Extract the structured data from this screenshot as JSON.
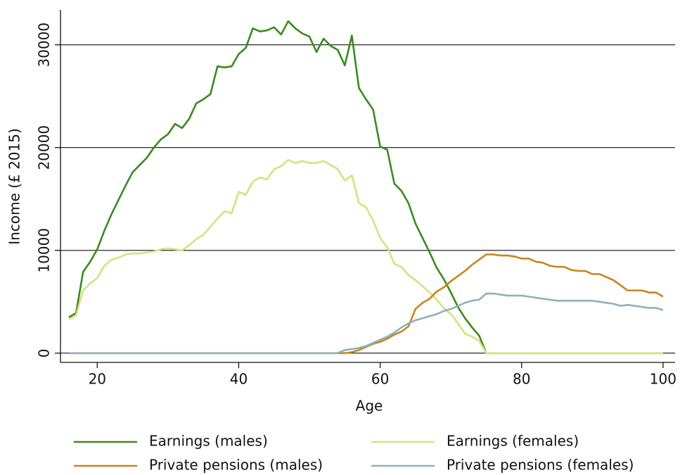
{
  "chart_data": {
    "type": "line",
    "x_label": "Age",
    "y_label": "Income (£ 2015)",
    "x": [
      16,
      17,
      18,
      19,
      20,
      21,
      22,
      23,
      24,
      25,
      26,
      27,
      28,
      29,
      30,
      31,
      32,
      33,
      34,
      35,
      36,
      37,
      38,
      39,
      40,
      41,
      42,
      43,
      44,
      45,
      46,
      47,
      48,
      49,
      50,
      51,
      52,
      53,
      54,
      55,
      56,
      57,
      58,
      59,
      60,
      61,
      62,
      63,
      64,
      65,
      66,
      67,
      68,
      69,
      70,
      71,
      72,
      73,
      74,
      75,
      76,
      77,
      78,
      79,
      80,
      81,
      82,
      83,
      84,
      85,
      86,
      87,
      88,
      89,
      90,
      91,
      92,
      93,
      94,
      95,
      96,
      97,
      98,
      99,
      100
    ],
    "series": [
      {
        "name": "Earnings (males)",
        "color": "#3b8a1f",
        "values": [
          3500,
          3900,
          7900,
          8900,
          10100,
          11900,
          13500,
          14900,
          16300,
          17600,
          18300,
          19000,
          20000,
          20800,
          21300,
          22300,
          21900,
          22800,
          24300,
          24700,
          25200,
          27900,
          27800,
          27900,
          29100,
          29700,
          31600,
          31300,
          31400,
          31700,
          31000,
          32300,
          31600,
          31100,
          30800,
          29300,
          30600,
          29900,
          29500,
          28000,
          30900,
          25800,
          24700,
          23700,
          20100,
          19800,
          16500,
          15800,
          14600,
          12600,
          11200,
          9800,
          8300,
          7200,
          5900,
          4500,
          3400,
          2500,
          1700,
          0,
          0,
          0,
          0,
          0,
          0,
          0,
          0,
          0,
          0,
          0,
          0,
          0,
          0,
          0,
          0,
          0,
          0,
          0,
          0,
          0,
          0,
          0,
          0,
          0,
          0
        ]
      },
      {
        "name": "Earnings (females)",
        "color": "#d6e27c",
        "values": [
          3300,
          3700,
          6100,
          6800,
          7300,
          8500,
          9100,
          9300,
          9600,
          9700,
          9700,
          9800,
          9900,
          10100,
          10200,
          10100,
          10000,
          10500,
          11100,
          11500,
          12300,
          13100,
          13800,
          13600,
          15700,
          15400,
          16700,
          17100,
          16900,
          17900,
          18200,
          18800,
          18500,
          18700,
          18500,
          18500,
          18700,
          18300,
          17900,
          16800,
          17300,
          14600,
          14200,
          12900,
          11200,
          10300,
          8700,
          8400,
          7600,
          7100,
          6500,
          5900,
          5200,
          4400,
          3800,
          2900,
          1900,
          1600,
          1200,
          0,
          0,
          0,
          0,
          0,
          0,
          0,
          0,
          0,
          0,
          0,
          0,
          0,
          0,
          0,
          0,
          0,
          0,
          0,
          0,
          0,
          0,
          0,
          0,
          0,
          0
        ]
      },
      {
        "name": "Private pensions (males)",
        "color": "#c8861c",
        "values": [
          0,
          0,
          0,
          0,
          0,
          0,
          0,
          0,
          0,
          0,
          0,
          0,
          0,
          0,
          0,
          0,
          0,
          0,
          0,
          0,
          0,
          0,
          0,
          0,
          0,
          0,
          0,
          0,
          0,
          0,
          0,
          0,
          0,
          0,
          0,
          0,
          0,
          0,
          0,
          0,
          100,
          300,
          600,
          900,
          1100,
          1400,
          1800,
          2100,
          2600,
          4300,
          4900,
          5300,
          6000,
          6400,
          7000,
          7500,
          8000,
          8600,
          9100,
          9600,
          9600,
          9500,
          9500,
          9400,
          9200,
          9200,
          8900,
          8800,
          8500,
          8400,
          8400,
          8100,
          8000,
          8000,
          7700,
          7700,
          7400,
          7100,
          6600,
          6100,
          6100,
          6100,
          5900,
          5900,
          5500
        ]
      },
      {
        "name": "Private pensions (females)",
        "color": "#90b0bd",
        "values": [
          0,
          0,
          0,
          0,
          0,
          0,
          0,
          0,
          0,
          0,
          0,
          0,
          0,
          0,
          0,
          0,
          0,
          0,
          0,
          0,
          0,
          0,
          0,
          0,
          0,
          0,
          0,
          0,
          0,
          0,
          0,
          0,
          0,
          0,
          0,
          0,
          0,
          0,
          0,
          300,
          400,
          500,
          700,
          1000,
          1300,
          1600,
          2000,
          2500,
          2900,
          3200,
          3400,
          3600,
          3800,
          4100,
          4300,
          4600,
          4900,
          5100,
          5200,
          5800,
          5800,
          5700,
          5600,
          5600,
          5600,
          5500,
          5400,
          5300,
          5200,
          5100,
          5100,
          5100,
          5100,
          5100,
          5100,
          5000,
          4900,
          4800,
          4600,
          4700,
          4600,
          4500,
          4400,
          4400,
          4200
        ]
      }
    ],
    "xlim": [
      14.8,
      101.7
    ],
    "xticks": [
      20,
      40,
      60,
      80,
      100
    ],
    "ylim": [
      -900,
      33400
    ],
    "yticks": [
      0,
      10000,
      20000,
      30000
    ],
    "grid": true,
    "legend": "bottom"
  }
}
